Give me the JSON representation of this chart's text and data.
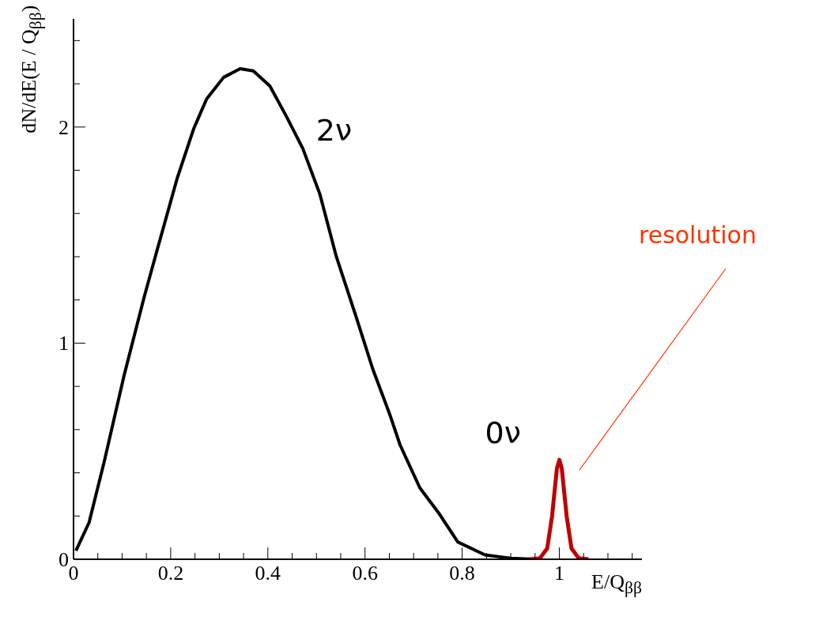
{
  "chart_data": {
    "type": "line",
    "xlabel": "E/Q$_{ββ}$",
    "ylabel": "dN/dE(E / Q$_{ββ}$)",
    "xlim": [
      0,
      1.17
    ],
    "ylim": [
      0,
      2.5
    ],
    "xticks": [
      0,
      {
        "value": 0.05,
        "label": null
      },
      {
        "value": 0.1,
        "label": null
      },
      {
        "value": 0.15,
        "label": null
      },
      0.2,
      {
        "value": 0.25,
        "label": null
      },
      {
        "value": 0.3,
        "label": null
      },
      {
        "value": 0.35,
        "label": null
      },
      0.4,
      {
        "value": 0.45,
        "label": null
      },
      {
        "value": 0.5,
        "label": null
      },
      {
        "value": 0.55,
        "label": null
      },
      0.6,
      {
        "value": 0.65,
        "label": null
      },
      {
        "value": 0.7,
        "label": null
      },
      {
        "value": 0.75,
        "label": null
      },
      0.8,
      {
        "value": 0.85,
        "label": null
      },
      {
        "value": 0.9,
        "label": null
      },
      {
        "value": 0.95,
        "label": null
      },
      1,
      {
        "value": 1.05,
        "label": null
      },
      {
        "value": 1.1,
        "label": null
      },
      {
        "value": 1.15,
        "label": null
      }
    ],
    "yticks": [
      0,
      {
        "value": 0.2,
        "label": null
      },
      {
        "value": 0.4,
        "label": null
      },
      {
        "value": 0.6,
        "label": null
      },
      {
        "value": 0.8,
        "label": null
      },
      1,
      {
        "value": 1.2,
        "label": null
      },
      {
        "value": 1.4,
        "label": null
      },
      {
        "value": 1.6,
        "label": null
      },
      {
        "value": 1.8,
        "label": null
      },
      2,
      {
        "value": 2.2,
        "label": null
      },
      {
        "value": 2.4,
        "label": null
      }
    ],
    "marker": "none",
    "line_style": "solid",
    "series": [
      {
        "name": "2ν",
        "color": "#000000",
        "x": [
          0.005,
          0.032,
          0.063,
          0.104,
          0.145,
          0.172,
          0.213,
          0.247,
          0.274,
          0.309,
          0.343,
          0.37,
          0.404,
          0.438,
          0.472,
          0.507,
          0.541,
          0.582,
          0.616,
          0.651,
          0.672,
          0.713,
          0.753,
          0.791,
          0.847,
          0.9,
          0.95
        ],
        "values": [
          0.04,
          0.17,
          0.45,
          0.85,
          1.21,
          1.43,
          1.76,
          1.99,
          2.13,
          2.23,
          2.27,
          2.26,
          2.19,
          2.05,
          1.9,
          1.69,
          1.4,
          1.12,
          0.88,
          0.67,
          0.53,
          0.33,
          0.21,
          0.08,
          0.02,
          0.005,
          0
        ]
      },
      {
        "name": "0ν",
        "color": "#c00000",
        "x": [
          0.94,
          0.96,
          0.975,
          0.985,
          0.995,
          1,
          1.005,
          1.015,
          1.025,
          1.04,
          1.06
        ],
        "values": [
          0,
          0.005,
          0.05,
          0.2,
          0.42,
          0.46,
          0.42,
          0.2,
          0.05,
          0.005,
          0
        ]
      }
    ],
    "annotations": [
      "resolution"
    ]
  }
}
